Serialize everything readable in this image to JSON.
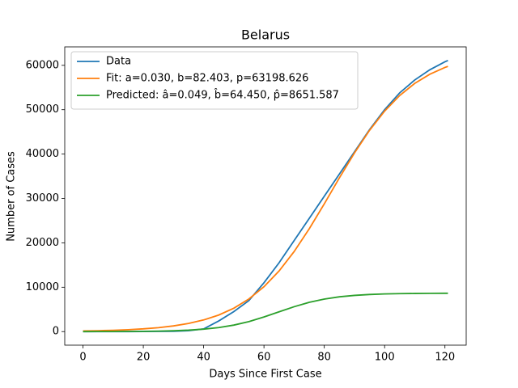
{
  "chart_data": {
    "type": "line",
    "title": "Belarus",
    "xlabel": "Days Since First Case",
    "ylabel": "Number of Cases",
    "x": [
      0,
      5,
      10,
      15,
      20,
      25,
      30,
      35,
      40,
      45,
      50,
      55,
      60,
      65,
      70,
      75,
      80,
      85,
      90,
      95,
      100,
      105,
      110,
      115,
      120,
      121
    ],
    "series": [
      {
        "name": "Data",
        "color": "#1f77b4",
        "values": [
          1,
          2,
          5,
          10,
          20,
          40,
          80,
          200,
          600,
          2400,
          4500,
          7000,
          11000,
          15500,
          20500,
          25500,
          30500,
          35500,
          40500,
          45500,
          50000,
          53800,
          56700,
          59000,
          60800,
          61100
        ]
      },
      {
        "name": "Fit: a=0.030, b=82.403, p=63198.626",
        "color": "#ff7f0e",
        "values": [
          142,
          205,
          297,
          428,
          618,
          891,
          1282,
          1837,
          2627,
          3733,
          5266,
          7349,
          10112,
          13650,
          18036,
          23150,
          28790,
          34630,
          40250,
          45340,
          49680,
          53200,
          55930,
          57990,
          59520,
          59760
        ]
      },
      {
        "name": "Predicted: â=0.049, b̂=64.450, p̂=8651.587",
        "color": "#2ca02c",
        "values": [
          7,
          12,
          22,
          37,
          65,
          111,
          191,
          326,
          551,
          911,
          1466,
          2259,
          3290,
          4455,
          5607,
          6589,
          7326,
          7837,
          8162,
          8362,
          8482,
          8554,
          8595,
          8619,
          8633,
          8635
        ]
      }
    ],
    "xlim": [
      -6.05,
      127.05
    ],
    "xticks": [
      0,
      20,
      40,
      60,
      80,
      100,
      120
    ],
    "ylim": [
      -3055,
      64155
    ],
    "yticks": [
      0,
      10000,
      20000,
      30000,
      40000,
      50000,
      60000
    ],
    "grid": false,
    "legend": "upper left"
  }
}
